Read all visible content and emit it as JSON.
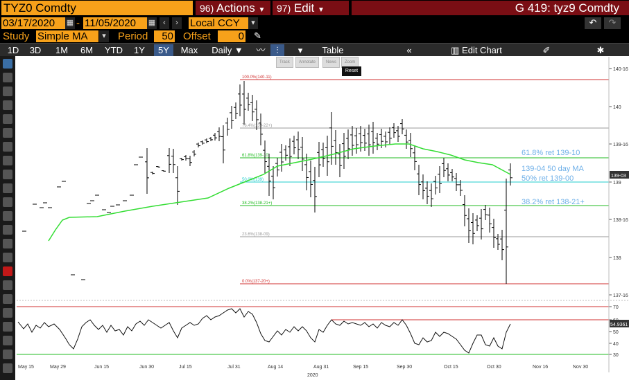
{
  "header": {
    "ticker": "TYZ0 Comdty",
    "actions_num": "96)",
    "actions_label": "Actions",
    "edit_num": "97)",
    "edit_label": "Edit",
    "right_title": "G 419: tyz9 Comdty"
  },
  "dates": {
    "start": "03/17/2020",
    "end": "11/05/2020",
    "currency": "Local CCY"
  },
  "study": {
    "label": "Study",
    "value": "Simple MA",
    "period_label": "Period",
    "period_value": "50",
    "offset_label": "Offset",
    "offset_value": "0"
  },
  "toolbar": {
    "ranges": [
      "1D",
      "3D",
      "1M",
      "6M",
      "YTD",
      "1Y",
      "5Y",
      "Max"
    ],
    "selected": "5Y",
    "frequency": "Daily",
    "table_label": "Table",
    "edit_chart_label": "Edit Chart"
  },
  "mini_tools": [
    "Track",
    "Annotate",
    "News",
    "Zoom"
  ],
  "reset_label": "Reset",
  "side_labels": [
    "Favorites",
    "Edit",
    "Style",
    "Notes"
  ],
  "chart_data": {
    "type": "ohlc",
    "price_axis": [
      "140-16",
      "140",
      "139-16",
      "139",
      "138-16",
      "138",
      "137-16"
    ],
    "last_price_tag": "139-03",
    "fib_levels": [
      {
        "label": "100.0%(140-11)",
        "color": "#d03030"
      },
      {
        "label": "76.4%(139-22+)",
        "color": "#999999"
      },
      {
        "label": "61.8%(139-10)",
        "color": "#22bb22"
      },
      {
        "label": "50.0%(139)",
        "color": "#22cccc"
      },
      {
        "label": "38.2%(138-21+)",
        "color": "#22bb22"
      },
      {
        "label": "23.6%(138-09)",
        "color": "#999999"
      },
      {
        "label": "0.0%(137-20+)",
        "color": "#d03030"
      }
    ],
    "annotations": [
      "61.8% ret 139-10",
      "139-04 50 day MA",
      "50% ret 139-00",
      "38.2% ret 138-21+"
    ],
    "annotation_color": "#6fb0e8",
    "ma_color": "#33dd33",
    "price_color": "#000000",
    "x_ticks": [
      "May 15",
      "May 29",
      "Jun 15",
      "Jun 30",
      "Jul 15",
      "Jul 31",
      "Aug 14",
      "Aug 31",
      "Sep 15",
      "Sep 30",
      "Oct 15",
      "Oct 30",
      "Nov 16",
      "Nov 30"
    ],
    "x_year": "2020",
    "rsi_axis": [
      "70",
      "60",
      "50",
      "40",
      "30"
    ],
    "rsi_last": "54.9361",
    "rsi_overbought": "70",
    "rsi_oversold": "30"
  }
}
